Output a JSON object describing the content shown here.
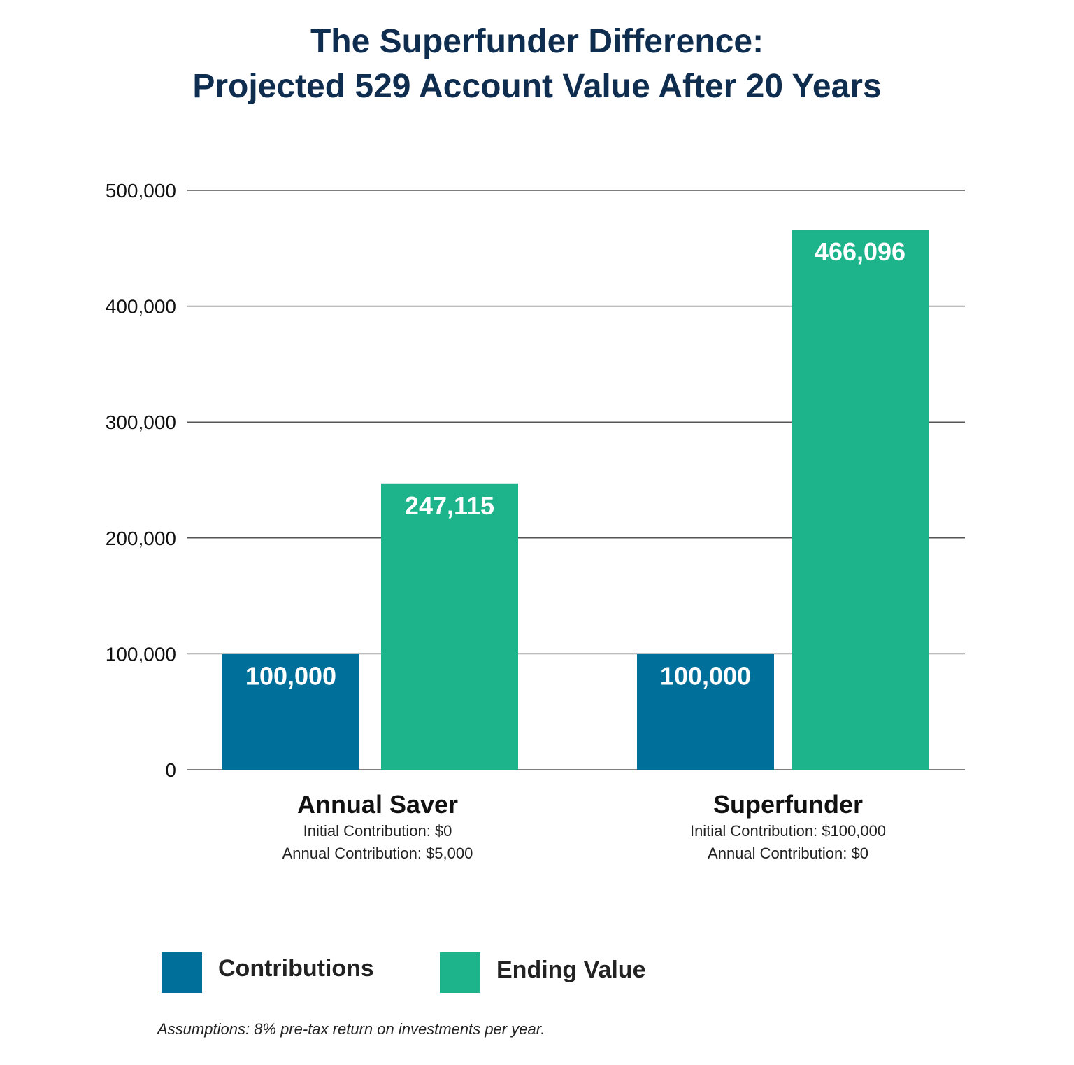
{
  "title_line1": "The Superfunder Difference:",
  "title_line2": "Projected 529 Account Value After 20 Years",
  "colors": {
    "contributions": "#006f9a",
    "ending_value": "#1db48c",
    "title": "#0f2d4f"
  },
  "groups": [
    {
      "name": "Annual Saver",
      "line1": "Initial Contribution: $0",
      "line2": "Annual Contribution: $5,000"
    },
    {
      "name": "Superfunder",
      "line1": "Initial Contribution: $100,000",
      "line2": "Annual Contribution: $0"
    }
  ],
  "legend": {
    "contributions": "Contributions",
    "ending_value": "Ending Value"
  },
  "note": "Assumptions:  8% pre-tax return on investments per year.",
  "chart_data": {
    "type": "bar",
    "categories": [
      "Annual Saver",
      "Superfunder"
    ],
    "series": [
      {
        "name": "Contributions",
        "values": [
          100000,
          100000
        ],
        "labels": [
          "100,000",
          "100,000"
        ]
      },
      {
        "name": "Ending Value",
        "values": [
          247115,
          466096
        ],
        "labels": [
          "247,115",
          "466,096"
        ]
      }
    ],
    "title": "The Superfunder Difference: Projected 529 Account Value After 20 Years",
    "ylim": [
      0,
      500000
    ],
    "yticks": [
      0,
      100000,
      200000,
      300000,
      400000,
      500000
    ],
    "ytick_labels": [
      "0",
      "100,000",
      "200,000",
      "300,000",
      "400,000",
      "500,000"
    ],
    "grid": true,
    "legend_position": "bottom-left"
  }
}
